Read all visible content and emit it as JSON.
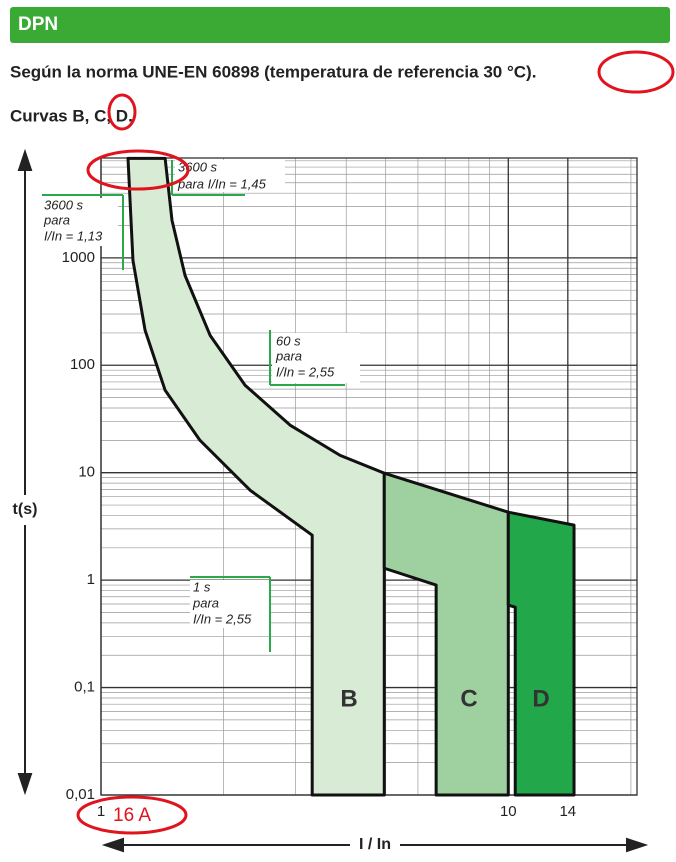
{
  "header": {
    "title": "DPN"
  },
  "subtitle": "Según la norma UNE-EN 60898 (temperatura de referencia 30 °C).",
  "curves_line": "Curvas B, C, D.",
  "handwritten_note": "16 A",
  "chart_data": {
    "type": "band",
    "ylabel": "t(s)",
    "xlabel": "I / In",
    "log_x": true,
    "log_y": true,
    "grid": true,
    "minor_grid": true,
    "xlim": [
      1,
      20.7
    ],
    "ylim": [
      0.01,
      8500
    ],
    "xticks": [
      1,
      10,
      14
    ],
    "yticks": [
      {
        "value": 0.01,
        "label": "0,01"
      },
      {
        "value": 0.1,
        "label": "0,1"
      },
      1,
      10,
      100,
      1000
    ],
    "series": [
      {
        "name": "B",
        "color": "#d8ecd5",
        "x": [
          1.165,
          1.198,
          1.283,
          1.437,
          1.75,
          2.323,
          3.3,
          3.3,
          4.96,
          4.96,
          3.865,
          2.913,
          2.258,
          1.853,
          1.608,
          1.494,
          1.437
        ],
        "values": [
          8430,
          948,
          212,
          58.5,
          20.0,
          6.87,
          2.62,
          0.01,
          0.01,
          9.9,
          14.5,
          27.7,
          65.2,
          190,
          687,
          2230,
          8430
        ]
      },
      {
        "name": "C",
        "color": "#9fd1a0",
        "x": [
          4.96,
          4.96,
          6.65,
          6.65,
          10,
          10
        ],
        "values": [
          9.9,
          1.29,
          0.9,
          0.01,
          0.01,
          4.29
        ]
      },
      {
        "name": "D",
        "color": "#22a84a",
        "x": [
          10,
          10,
          10.4,
          10.4,
          14.5,
          14.5
        ],
        "values": [
          4.29,
          0.585,
          0.56,
          0.01,
          0.01,
          3.25
        ]
      }
    ],
    "annotations": [
      [
        "3600 s",
        "para",
        "I/In = 1,13"
      ],
      [
        "3600 s",
        "para I/In = 1,45"
      ],
      [
        "60 s",
        "para",
        "I/In = 2,55"
      ],
      [
        "1 s",
        "para",
        "I/In = 2,55"
      ]
    ]
  }
}
